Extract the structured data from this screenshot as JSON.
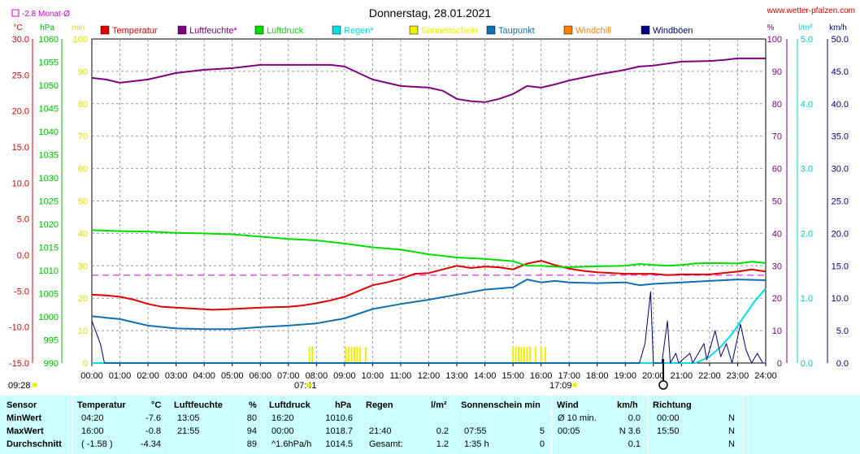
{
  "header": {
    "title": "Donnerstag, 28.01.2021",
    "site": "www.wetter-pfalzen.com",
    "monat_label": "-2.8 Monat-Ø"
  },
  "units": {
    "left": [
      "°C",
      "hPa",
      "min"
    ],
    "right": [
      "%",
      "l/m²",
      "km/h"
    ]
  },
  "colors": {
    "temperatur": "#e00000",
    "luftfeuchte": "#800080",
    "luftdruck": "#00dd00",
    "regen": "#00e0e0",
    "sonnenschein": "#eeee00",
    "taupunkt": "#1070b0",
    "windchill": "#ff8000",
    "windboeen": "#000080",
    "grid": "#999999",
    "table_bg": "#ccffff"
  },
  "legend": [
    {
      "label": "Temperatur",
      "color": "#e00000"
    },
    {
      "label": "Luftfeuchte*",
      "color": "#800080"
    },
    {
      "label": "Luftdruck",
      "color": "#00dd00"
    },
    {
      "label": "Regen*",
      "color": "#00e0e0"
    },
    {
      "label": "Sonnenschein",
      "color": "#eeee00"
    },
    {
      "label": "Taupunkt",
      "color": "#1070b0"
    },
    {
      "label": "Windchill",
      "color": "#ff8000"
    },
    {
      "label": "Windböen",
      "color": "#000080"
    }
  ],
  "annotations": {
    "sunrise": "07:41",
    "sunset": "17:09",
    "moon_time": "09:28"
  },
  "chart_data": {
    "type": "line",
    "grid": true,
    "x_ticks": [
      "00:00",
      "01:00",
      "02:00",
      "03:00",
      "04:00",
      "05:00",
      "06:00",
      "07:00",
      "08:00",
      "09:00",
      "10:00",
      "11:00",
      "12:00",
      "13:00",
      "14:00",
      "15:00",
      "16:00",
      "17:00",
      "18:00",
      "19:00",
      "20:00",
      "21:00",
      "22:00",
      "23:00",
      "24:00"
    ],
    "x_range": [
      0,
      24
    ],
    "axes": {
      "temp": {
        "range": [
          -15,
          30
        ],
        "ticks": [
          "30.0",
          "25.0",
          "20.0",
          "15.0",
          "10.0",
          "5.0",
          "0.0",
          "-5.0",
          "-10.0",
          "-15.0"
        ]
      },
      "hpa": {
        "range": [
          990,
          1060
        ],
        "ticks": [
          "1060",
          "1055",
          "1050",
          "1045",
          "1040",
          "1035",
          "1030",
          "1025",
          "1020",
          "1015",
          "1010",
          "1005",
          "1000",
          "995",
          "990"
        ]
      },
      "min": {
        "range": [
          0,
          100
        ],
        "ticks": [
          "100",
          "90",
          "80",
          "70",
          "60",
          "50",
          "40",
          "30",
          "20",
          "10",
          "0"
        ]
      },
      "pct": {
        "range": [
          0,
          100
        ],
        "ticks": [
          "100",
          "90",
          "80",
          "70",
          "60",
          "50",
          "40",
          "30",
          "20",
          "10",
          "0"
        ]
      },
      "rain": {
        "range": [
          0,
          5
        ],
        "ticks": [
          "5.0",
          "4.0",
          "3.0",
          "2.0",
          "1.0",
          "0.0"
        ]
      },
      "kmh": {
        "range": [
          0,
          50
        ],
        "ticks": [
          "50.0",
          "45.0",
          "40.0",
          "35.0",
          "30.0",
          "25.0",
          "20.0",
          "15.0",
          "10.0",
          "5.0",
          "0.0"
        ]
      }
    },
    "month_avg_temp": -2.8,
    "series": [
      {
        "name": "Temperatur",
        "axis": "temp",
        "points": [
          [
            0,
            -5.5
          ],
          [
            0.5,
            -5.6
          ],
          [
            1,
            -5.8
          ],
          [
            1.5,
            -6.2
          ],
          [
            2,
            -6.8
          ],
          [
            2.5,
            -7.2
          ],
          [
            3,
            -7.3
          ],
          [
            4.3,
            -7.6
          ],
          [
            5,
            -7.5
          ],
          [
            6,
            -7.3
          ],
          [
            7,
            -7.2
          ],
          [
            7.5,
            -7.0
          ],
          [
            8,
            -6.7
          ],
          [
            8.5,
            -6.3
          ],
          [
            9,
            -5.8
          ],
          [
            9.5,
            -5.0
          ],
          [
            10,
            -4.2
          ],
          [
            10.5,
            -3.8
          ],
          [
            11,
            -3.3
          ],
          [
            11.5,
            -2.6
          ],
          [
            12,
            -2.5
          ],
          [
            12.5,
            -2.0
          ],
          [
            13,
            -1.5
          ],
          [
            13.5,
            -1.8
          ],
          [
            14,
            -1.6
          ],
          [
            14.5,
            -1.7
          ],
          [
            15,
            -2.0
          ],
          [
            15.5,
            -1.2
          ],
          [
            16,
            -0.8
          ],
          [
            16.5,
            -1.4
          ],
          [
            17,
            -1.9
          ],
          [
            17.5,
            -2.2
          ],
          [
            18,
            -2.4
          ],
          [
            19,
            -2.6
          ],
          [
            20,
            -2.6
          ],
          [
            20.5,
            -2.8
          ],
          [
            21,
            -2.7
          ],
          [
            22,
            -2.7
          ],
          [
            23,
            -2.3
          ],
          [
            23.5,
            -2.0
          ],
          [
            24,
            -2.3
          ]
        ]
      },
      {
        "name": "Luftfeuchte*",
        "axis": "pct",
        "points": [
          [
            0,
            88
          ],
          [
            0.5,
            87.5
          ],
          [
            1,
            86.5
          ],
          [
            2,
            87.5
          ],
          [
            3,
            89.5
          ],
          [
            4,
            90.5
          ],
          [
            5,
            91
          ],
          [
            5.5,
            91.5
          ],
          [
            6,
            92
          ],
          [
            7,
            92
          ],
          [
            8,
            92
          ],
          [
            8.5,
            92
          ],
          [
            9,
            91.5
          ],
          [
            9.5,
            89.5
          ],
          [
            10,
            87.5
          ],
          [
            10.5,
            86.5
          ],
          [
            11,
            85.5
          ],
          [
            12,
            85
          ],
          [
            12.5,
            84
          ],
          [
            13,
            81.5
          ],
          [
            13.5,
            80.8
          ],
          [
            14,
            80.5
          ],
          [
            14.5,
            81.5
          ],
          [
            15,
            83
          ],
          [
            15.5,
            85.5
          ],
          [
            16,
            85
          ],
          [
            16.5,
            86
          ],
          [
            17,
            87.2
          ],
          [
            18,
            89
          ],
          [
            19,
            90.5
          ],
          [
            19.5,
            91.5
          ],
          [
            20,
            91.8
          ],
          [
            21,
            93
          ],
          [
            22,
            93.2
          ],
          [
            22.5,
            93.5
          ],
          [
            23,
            94
          ],
          [
            24,
            94
          ]
        ]
      },
      {
        "name": "Luftdruck",
        "axis": "hpa",
        "points": [
          [
            0,
            1018.7
          ],
          [
            1,
            1018.5
          ],
          [
            2,
            1018.4
          ],
          [
            3,
            1018.1
          ],
          [
            4,
            1018.0
          ],
          [
            5,
            1017.8
          ],
          [
            6,
            1017.3
          ],
          [
            7,
            1016.8
          ],
          [
            8,
            1016.5
          ],
          [
            9,
            1015.8
          ],
          [
            10,
            1015.0
          ],
          [
            11,
            1014.5
          ],
          [
            12,
            1013.5
          ],
          [
            13,
            1012.8
          ],
          [
            14,
            1012.5
          ],
          [
            15,
            1012.0
          ],
          [
            15.5,
            1011.0
          ],
          [
            16,
            1011.0
          ],
          [
            16.5,
            1010.8
          ],
          [
            17,
            1010.7
          ],
          [
            17.5,
            1010.8
          ],
          [
            18,
            1010.9
          ],
          [
            19,
            1011.0
          ],
          [
            19.5,
            1011.4
          ],
          [
            20,
            1011.2
          ],
          [
            20.5,
            1011.0
          ],
          [
            21,
            1011.2
          ],
          [
            21.5,
            1011.5
          ],
          [
            22,
            1011.6
          ],
          [
            23,
            1011.5
          ],
          [
            23.5,
            1011.9
          ],
          [
            24,
            1011.6
          ]
        ]
      },
      {
        "name": "Taupunkt",
        "axis": "temp",
        "points": [
          [
            0,
            -8.5
          ],
          [
            1,
            -8.9
          ],
          [
            2,
            -9.8
          ],
          [
            3,
            -10.2
          ],
          [
            4,
            -10.3
          ],
          [
            5,
            -10.3
          ],
          [
            6,
            -10.0
          ],
          [
            7,
            -9.8
          ],
          [
            8,
            -9.5
          ],
          [
            9,
            -8.8
          ],
          [
            10,
            -7.5
          ],
          [
            11,
            -6.8
          ],
          [
            12,
            -6.2
          ],
          [
            13,
            -5.5
          ],
          [
            14,
            -4.8
          ],
          [
            15,
            -4.5
          ],
          [
            15.5,
            -3.4
          ],
          [
            16,
            -3.8
          ],
          [
            16.5,
            -3.6
          ],
          [
            17,
            -3.8
          ],
          [
            18,
            -3.9
          ],
          [
            19,
            -3.8
          ],
          [
            19.5,
            -4.2
          ],
          [
            20,
            -4.0
          ],
          [
            21,
            -3.8
          ],
          [
            22,
            -3.6
          ],
          [
            23,
            -3.4
          ],
          [
            24,
            -3.5
          ]
        ]
      },
      {
        "name": "Regen*",
        "axis": "rain",
        "points": [
          [
            0,
            0
          ],
          [
            21.5,
            0
          ],
          [
            22,
            0.1
          ],
          [
            22.4,
            0.25
          ],
          [
            22.8,
            0.45
          ],
          [
            23.2,
            0.7
          ],
          [
            23.6,
            0.95
          ],
          [
            24,
            1.15
          ]
        ]
      },
      {
        "name": "Windböen",
        "axis": "kmh",
        "points": [
          [
            0,
            6.5
          ],
          [
            0.3,
            3
          ],
          [
            0.45,
            0
          ],
          [
            19.5,
            0
          ],
          [
            19.7,
            3
          ],
          [
            19.9,
            11
          ],
          [
            20.0,
            0
          ],
          [
            20.3,
            0
          ],
          [
            20.5,
            6.5
          ],
          [
            20.6,
            0
          ],
          [
            20.8,
            1.5
          ],
          [
            20.9,
            0
          ],
          [
            21.3,
            1.5
          ],
          [
            21.4,
            0
          ],
          [
            21.8,
            3
          ],
          [
            21.9,
            0.5
          ],
          [
            22.2,
            5
          ],
          [
            22.4,
            1
          ],
          [
            22.6,
            3
          ],
          [
            22.8,
            0
          ],
          [
            23.1,
            6
          ],
          [
            23.3,
            2
          ],
          [
            23.5,
            0
          ],
          [
            23.7,
            1.5
          ],
          [
            23.9,
            0
          ],
          [
            24,
            0
          ]
        ]
      }
    ],
    "sunshine_minutes": [
      [
        7.75,
        5
      ],
      [
        7.85,
        5
      ],
      [
        9.05,
        5
      ],
      [
        9.15,
        5
      ],
      [
        9.25,
        5
      ],
      [
        9.35,
        5
      ],
      [
        9.45,
        5
      ],
      [
        9.55,
        5
      ],
      [
        9.75,
        5
      ],
      [
        15.0,
        5
      ],
      [
        15.1,
        5
      ],
      [
        15.2,
        5
      ],
      [
        15.3,
        5
      ],
      [
        15.4,
        5
      ],
      [
        15.5,
        5
      ],
      [
        15.6,
        5
      ],
      [
        15.8,
        5
      ],
      [
        16.0,
        5
      ],
      [
        16.15,
        5
      ]
    ]
  },
  "table": {
    "headers": {
      "sensor": "Sensor",
      "temp": "Temperatur",
      "temp_unit": "°C",
      "hum": "Luftfeuchte",
      "hum_unit": "%",
      "press": "Luftdruck",
      "press_unit": "hPa",
      "rain": "Regen",
      "rain_unit": "l/m²",
      "sun": "Sonnenschein min",
      "wind": "Wind",
      "wind_unit": "km/h",
      "dir": "Richtung"
    },
    "rows": [
      {
        "label": "MinWert",
        "temp_time": "04:20",
        "temp_val": "-7.6",
        "hum_time": "13:05",
        "hum_val": "80",
        "press_time": "16:20",
        "press_val": "1010.6",
        "rain_time": "",
        "rain_val": "",
        "sun_time": "",
        "sun_val": "",
        "wind_time": "Ø 10 min.",
        "wind_val": "0.0",
        "dir_time": "00:00",
        "dir_val": "N"
      },
      {
        "label": "MaxWert",
        "temp_time": "16:00",
        "temp_val": "-0.8",
        "hum_time": "21:55",
        "hum_val": "94",
        "press_time": "00:00",
        "press_val": "1018.7",
        "rain_time": "21:40",
        "rain_val": "0.2",
        "sun_time": "07:55",
        "sun_val": "5",
        "wind_time": "00:05",
        "wind_val": "N 3.6",
        "dir_time": "15:50",
        "dir_val": "N"
      },
      {
        "label": "Durchschnitt",
        "temp_time": "( -1.58 )",
        "temp_val": "-4.34",
        "hum_time": "",
        "hum_val": "89",
        "press_time": "^1.6hPa/h",
        "press_val": "1014.5",
        "rain_time": "Gesamt:",
        "rain_val": "1.2",
        "sun_time": "1:35 h",
        "sun_val": "0",
        "wind_time": "",
        "wind_val": "0.1",
        "dir_time": "",
        "dir_val": "N"
      }
    ]
  }
}
